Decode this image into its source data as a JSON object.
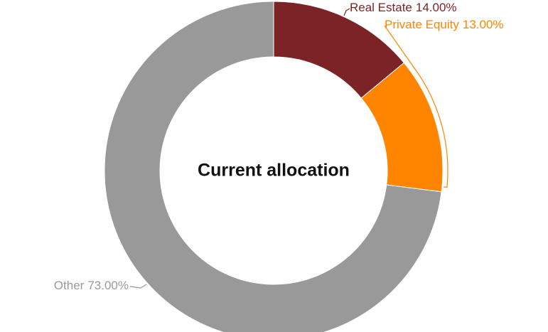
{
  "chart_data": {
    "type": "donut",
    "title": "Current allocation",
    "categories": [
      "Real Estate",
      "Private Equity",
      "Other"
    ],
    "values": [
      14,
      13,
      73
    ],
    "value_labels": [
      "14.00%",
      "13.00%",
      "73.00%"
    ],
    "colors": [
      "#7b2327",
      "#ff8500",
      "#999999"
    ]
  }
}
